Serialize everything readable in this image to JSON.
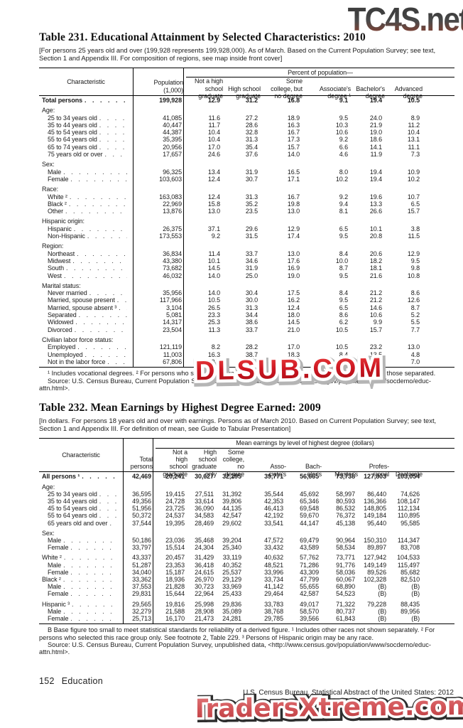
{
  "watermarks": {
    "top": "TC4S.net",
    "middle": "DLSUB.COM",
    "bottom": "TradersXtreme.com"
  },
  "table231": {
    "title": "Table 231. Educational Attainment by Selected Characteristics: 2010",
    "note": "[For persons 25 years old and over (199,928 represents 199,928,000). As of March. Based on the Current Population Survey; see text, Section 1 and Appendix III. For composition of regions, see map inside front cover]",
    "col_characteristic": "Characteristic",
    "col_population": "Population\n(1,000)",
    "spanner": "Percent of population—",
    "columns": [
      "Not a high\nschool\ngraduate",
      "High school\ngraduate",
      "Some\ncollege, but\nno degree",
      "Associate's\ndegree ¹",
      "Bachelor's\ndegree",
      "Advanced\ndegree"
    ],
    "rows": [
      {
        "label": "Total persons",
        "bold": true,
        "indent": 0,
        "values": [
          "199,928",
          "12.9",
          "31.2",
          "16.8",
          "9.1",
          "19.4",
          "10.5"
        ]
      },
      {
        "label": "Age:",
        "section": true,
        "gap": true
      },
      {
        "label": "25 to 34 years old",
        "indent": 1,
        "values": [
          "41,085",
          "11.6",
          "27.2",
          "18.9",
          "9.5",
          "24.0",
          "8.9"
        ]
      },
      {
        "label": "35 to 44 years old",
        "indent": 1,
        "values": [
          "40,447",
          "11.7",
          "28.6",
          "16.3",
          "10.3",
          "21.9",
          "11.2"
        ]
      },
      {
        "label": "45 to 54 years old",
        "indent": 1,
        "values": [
          "44,387",
          "10.4",
          "32.8",
          "16.7",
          "10.6",
          "19.0",
          "10.4"
        ]
      },
      {
        "label": "55 to 64 years old",
        "indent": 1,
        "values": [
          "35,395",
          "10.4",
          "31.3",
          "17.3",
          "9.2",
          "18.6",
          "13.1"
        ]
      },
      {
        "label": "65 to 74 years old",
        "indent": 1,
        "values": [
          "20,956",
          "17.0",
          "35.4",
          "15.7",
          "6.6",
          "14.1",
          "11.1"
        ]
      },
      {
        "label": "75 years old or over",
        "indent": 1,
        "values": [
          "17,657",
          "24.6",
          "37.6",
          "14.0",
          "4.6",
          "11.9",
          "7.3"
        ]
      },
      {
        "label": "Sex:",
        "section": true,
        "gap": true
      },
      {
        "label": "Male",
        "indent": 1,
        "values": [
          "96,325",
          "13.4",
          "31.9",
          "16.5",
          "8.0",
          "19.4",
          "10.9"
        ]
      },
      {
        "label": "Female",
        "indent": 1,
        "values": [
          "103,603",
          "12.4",
          "30.7",
          "17.1",
          "10.2",
          "19.4",
          "10.2"
        ]
      },
      {
        "label": "Race:",
        "section": true,
        "gap": true
      },
      {
        "label": "White ²",
        "indent": 1,
        "values": [
          "163,083",
          "12.4",
          "31.3",
          "16.7",
          "9.2",
          "19.6",
          "10.7"
        ]
      },
      {
        "label": "Black ²",
        "indent": 1,
        "values": [
          "22,969",
          "15.8",
          "35.2",
          "19.8",
          "9.4",
          "13.3",
          "6.5"
        ]
      },
      {
        "label": "Other",
        "indent": 1,
        "values": [
          "13,876",
          "13.0",
          "23.5",
          "13.0",
          "8.1",
          "26.6",
          "15.7"
        ]
      },
      {
        "label": "Hispanic origin:",
        "section": true,
        "gap": true
      },
      {
        "label": "Hispanic",
        "indent": 1,
        "values": [
          "26,375",
          "37.1",
          "29.6",
          "12.9",
          "6.5",
          "10.1",
          "3.8"
        ]
      },
      {
        "label": "Non-Hispanic",
        "indent": 1,
        "values": [
          "173,553",
          "9.2",
          "31.5",
          "17.4",
          "9.5",
          "20.8",
          "11.5"
        ]
      },
      {
        "label": "Region:",
        "section": true,
        "gap": true
      },
      {
        "label": "Northeast",
        "indent": 1,
        "values": [
          "36,834",
          "11.4",
          "33.7",
          "13.0",
          "8.4",
          "20.6",
          "12.9"
        ]
      },
      {
        "label": "Midwest",
        "indent": 1,
        "values": [
          "43,380",
          "10.1",
          "34.6",
          "17.6",
          "10.0",
          "18.2",
          "9.5"
        ]
      },
      {
        "label": "South",
        "indent": 1,
        "values": [
          "73,682",
          "14.5",
          "31.9",
          "16.9",
          "8.7",
          "18.1",
          "9.8"
        ]
      },
      {
        "label": "West",
        "indent": 1,
        "values": [
          "46,032",
          "14.0",
          "25.0",
          "19.0",
          "9.5",
          "21.6",
          "10.8"
        ]
      },
      {
        "label": "Marital status:",
        "section": true,
        "gap": true
      },
      {
        "label": "Never married",
        "indent": 1,
        "values": [
          "35,956",
          "14.0",
          "30.4",
          "17.5",
          "8.4",
          "21.2",
          "8.6"
        ]
      },
      {
        "label": "Married, spouse present",
        "indent": 1,
        "values": [
          "117,966",
          "10.5",
          "30.0",
          "16.2",
          "9.5",
          "21.2",
          "12.6"
        ]
      },
      {
        "label": "Married, spouse absent ³",
        "indent": 1,
        "values": [
          "3,104",
          "26.5",
          "31.3",
          "12.4",
          "6.5",
          "14.6",
          "8.7"
        ]
      },
      {
        "label": "Separated",
        "indent": 1,
        "values": [
          "5,081",
          "23.3",
          "34.4",
          "18.0",
          "8.6",
          "10.6",
          "5.2"
        ]
      },
      {
        "label": "Widowed",
        "indent": 1,
        "values": [
          "14,317",
          "25.3",
          "38.6",
          "14.5",
          "6.2",
          "9.9",
          "5.5"
        ]
      },
      {
        "label": "Divorced",
        "indent": 1,
        "values": [
          "23,504",
          "11.3",
          "33.7",
          "21.0",
          "10.5",
          "15.7",
          "7.7"
        ]
      },
      {
        "label": "Civilian labor force status:",
        "section": true,
        "gap": true
      },
      {
        "label": "Employed",
        "indent": 1,
        "values": [
          "121,119",
          "8.2",
          "28.2",
          "17.0",
          "10.5",
          "23.2",
          "13.0"
        ]
      },
      {
        "label": "Unemployed",
        "indent": 1,
        "values": [
          "11,003",
          "16.3",
          "38.7",
          "18.3",
          "8.4",
          "13.5",
          "4.8"
        ]
      },
      {
        "label": "Not in the labor force",
        "indent": 1,
        "values": [
          "67,806",
          "19.5",
          "35.8",
          "16.5",
          "6.8",
          "13.5",
          "7.0"
        ]
      }
    ],
    "footnote": "¹ Includes vocational degrees. ² For persons who selected this race group only. See footnote 2, Table 229. ³ Excludes those separated.",
    "source": "Source: U.S. Census Bureau, Current Population Survey, unpublished data, <http://www.census.gov/population/www/socdemo/educ-attn.html>."
  },
  "table232": {
    "title": "Table 232. Mean Earnings by Highest Degree Earned: 2009",
    "note": "[In dollars. For persons 18 years old and over with earnings. Persons as of March 2010. Based on Current Population Survey; see text, Section 1 and Appendix III. For definition of mean, see Guide to Tabular Presentation]",
    "col_characteristic": "Characteristic",
    "col_total": "Total\npersons",
    "spanner": "Mean earnings by level of highest degree (dollars)",
    "columns": [
      "Not a\nhigh\nschool\ngraduate",
      "High\nschool\ngraduate\nonly",
      "Some\ncollege,\nno\ndegree",
      "Asso-\nciate's",
      "Bach-\nelor's",
      "Master's",
      "Profes-\nsional",
      "Doctorate"
    ],
    "rows": [
      {
        "label": "All persons ¹",
        "bold": true,
        "indent": 0,
        "values": [
          "42,469",
          "20,241",
          "30,627",
          "32,295",
          "39,771",
          "56,665",
          "73,738",
          "127,803",
          "103,054"
        ]
      },
      {
        "label": "Age:",
        "section": true,
        "gap": true
      },
      {
        "label": "25 to 34 years old",
        "indent": 1,
        "values": [
          "36,595",
          "19,415",
          "27,511",
          "31,392",
          "35,544",
          "45,692",
          "58,997",
          "86,440",
          "74,626"
        ]
      },
      {
        "label": "35 to 44 years old",
        "indent": 1,
        "values": [
          "49,356",
          "24,728",
          "33,614",
          "39,806",
          "42,353",
          "65,346",
          "80,593",
          "136,366",
          "108,147"
        ]
      },
      {
        "label": "45 to 54 years old",
        "indent": 1,
        "values": [
          "51,956",
          "23,725",
          "36,090",
          "44,135",
          "46,413",
          "69,548",
          "86,532",
          "148,805",
          "112,134"
        ]
      },
      {
        "label": "55 to 64 years old",
        "indent": 1,
        "values": [
          "50,372",
          "24,537",
          "34,583",
          "42,547",
          "42,192",
          "59,670",
          "76,372",
          "149,184",
          "110,895"
        ]
      },
      {
        "label": "65 years old and over",
        "indent": 1,
        "values": [
          "37,544",
          "19,395",
          "28,469",
          "29,602",
          "33,541",
          "44,147",
          "45,138",
          "95,440",
          "95,585"
        ]
      },
      {
        "label": "Sex:",
        "section": true,
        "gap": true
      },
      {
        "label": "Male",
        "indent": 1,
        "values": [
          "50,186",
          "23,036",
          "35,468",
          "39,204",
          "47,572",
          "69,479",
          "90,964",
          "150,310",
          "114,347"
        ]
      },
      {
        "label": "Female",
        "indent": 1,
        "values": [
          "33,797",
          "15,514",
          "24,304",
          "25,340",
          "33,432",
          "43,589",
          "58,534",
          "89,897",
          "83,708"
        ]
      },
      {
        "label": "White ²",
        "indent": 0,
        "gap": true,
        "values": [
          "43,337",
          "20,457",
          "31,429",
          "33,119",
          "40,632",
          "57,762",
          "73,771",
          "127,942",
          "104,533"
        ]
      },
      {
        "label": "Male",
        "indent": 1,
        "values": [
          "51,287",
          "23,353",
          "36,418",
          "40,352",
          "48,521",
          "71,286",
          "91,776",
          "149,149",
          "115,497"
        ]
      },
      {
        "label": "Female",
        "indent": 1,
        "values": [
          "34,040",
          "15,187",
          "24,615",
          "25,537",
          "33,996",
          "43,309",
          "58,036",
          "89,526",
          "85,682"
        ]
      },
      {
        "label": "Black ²",
        "indent": 0,
        "values": [
          "33,362",
          "18,936",
          "26,970",
          "29,129",
          "33,734",
          "47,799",
          "60,067",
          "102,328",
          "82,510"
        ]
      },
      {
        "label": "Male",
        "indent": 1,
        "values": [
          "37,553",
          "21,828",
          "30,723",
          "33,969",
          "41,142",
          "55,655",
          "68,890",
          "(B)",
          "(B)"
        ]
      },
      {
        "label": "Female",
        "indent": 1,
        "values": [
          "29,831",
          "15,644",
          "22,964",
          "25,433",
          "29,464",
          "42,587",
          "54,523",
          "(B)",
          "(B)"
        ]
      },
      {
        "label": "Hispanic ³",
        "indent": 0,
        "gap": true,
        "values": [
          "29,565",
          "19,816",
          "25,998",
          "29,836",
          "33,783",
          "49,017",
          "71,322",
          "79,228",
          "88,435"
        ]
      },
      {
        "label": "Male",
        "indent": 1,
        "values": [
          "32,279",
          "21,588",
          "28,908",
          "35,089",
          "38,768",
          "58,570",
          "80,737",
          "(B)",
          "89,956"
        ]
      },
      {
        "label": "Female",
        "indent": 1,
        "values": [
          "25,713",
          "16,170",
          "21,473",
          "24,281",
          "29,785",
          "39,566",
          "61,843",
          "(B)",
          "(B)"
        ]
      }
    ],
    "footnote": "B Base figure too small to meet statistical standards for reliability of a derived figure. ¹ Includes other races not shown separately. ² For persons who selected this race group only. See footnote 2, Table 229. ³ Persons of Hispanic origin may be any race.",
    "source": "Source: U.S. Census Bureau, Current Population Survey, unpublished data, <http://www.census.gov/population/www/socdemo/educ-attn.html>."
  },
  "page": {
    "footer_left_num": "152",
    "footer_left_label": "Education",
    "footer_right": "U.S. Census Bureau, Statistical Abstract of the United States: 2012"
  },
  "colors": {
    "watermark_red": "#c0121c",
    "watermark_pink": "#d4595c",
    "ink": "#1a1a1a"
  }
}
